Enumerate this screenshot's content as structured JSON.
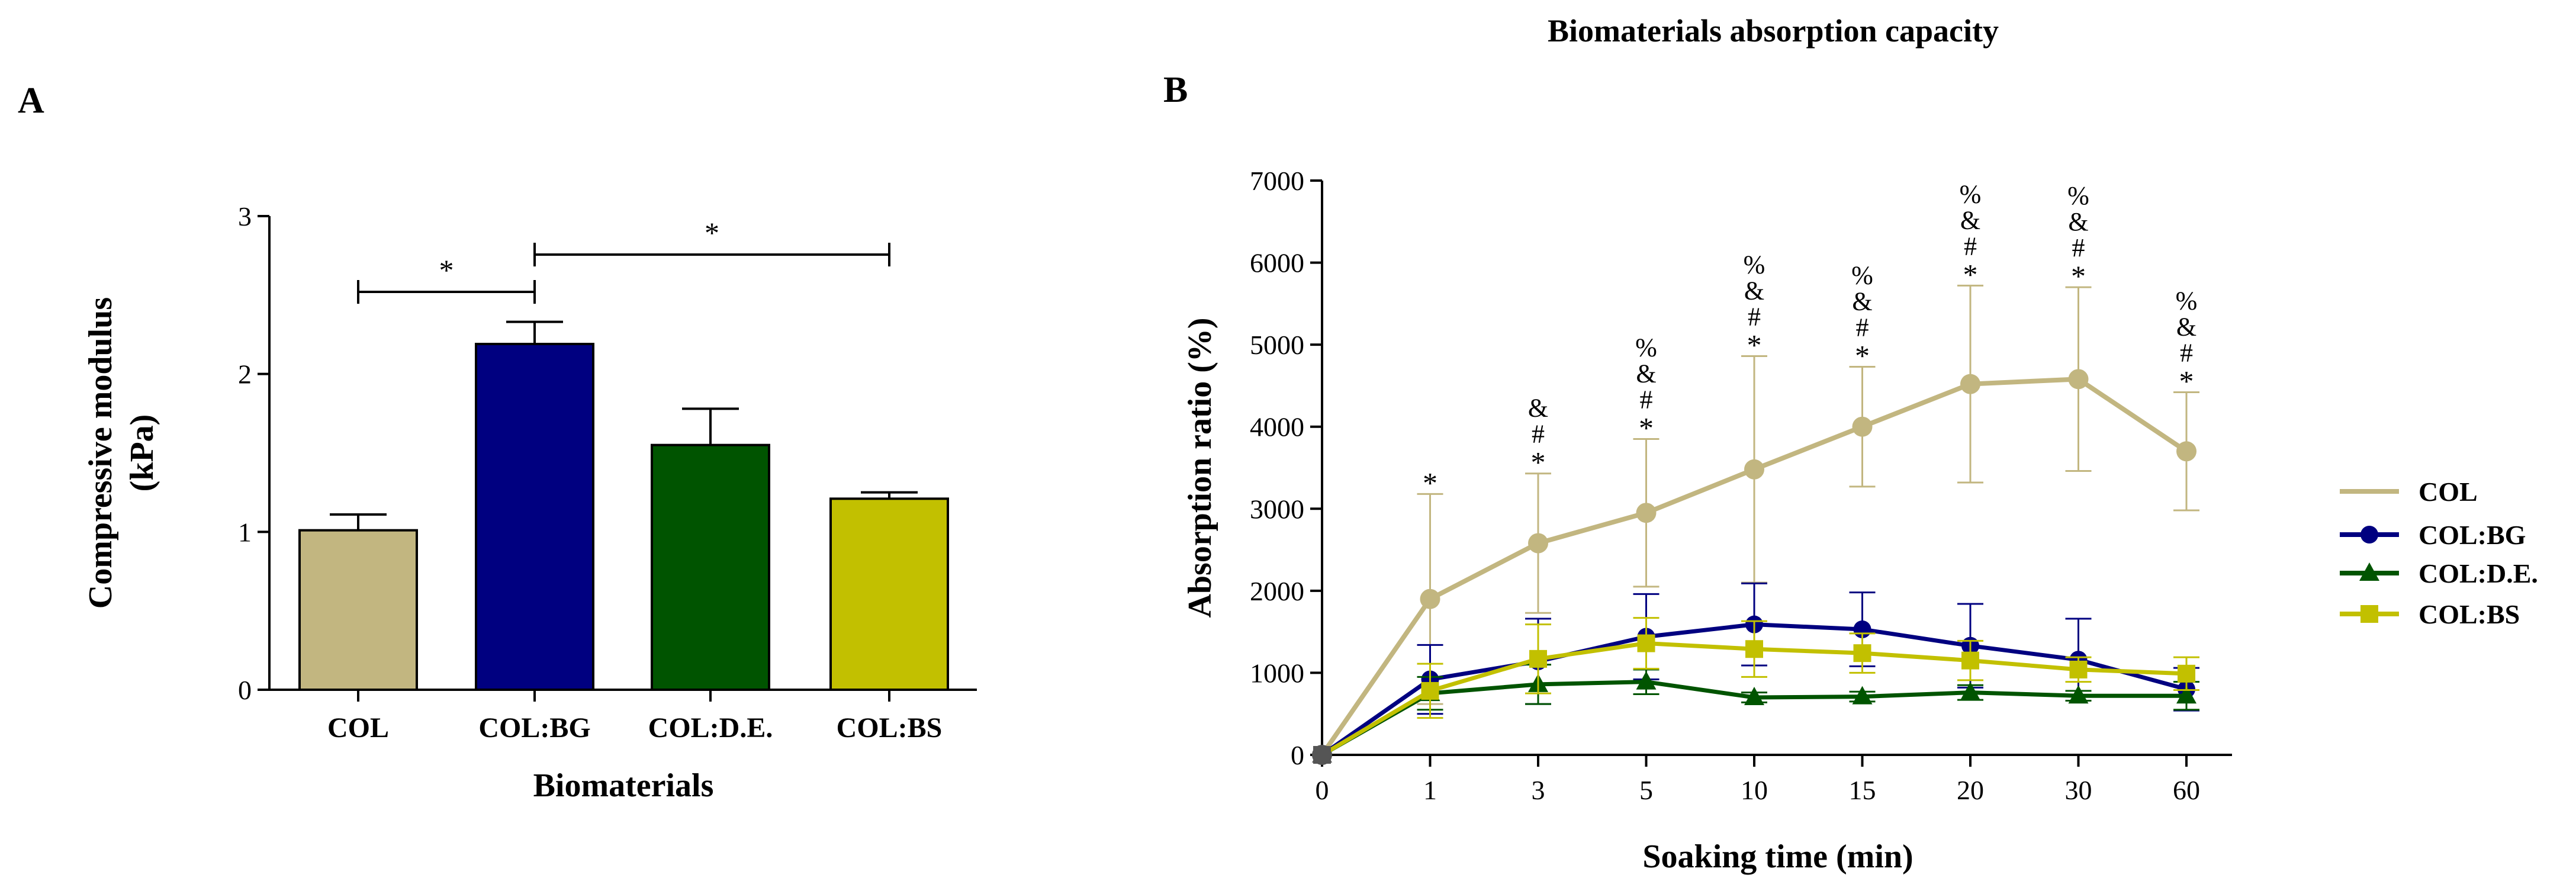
{
  "chart_data": [
    {
      "panel": "A",
      "type": "bar",
      "title": "",
      "xlabel": "Biomaterials",
      "ylabel": "Compressive modulus",
      "ylabel_unit": "(kPa)",
      "ylim": [
        0,
        3
      ],
      "yticks": [
        0,
        1,
        2,
        3
      ],
      "categories": [
        "COL",
        "COL:BG",
        "COL:D.E.",
        "COL:BS"
      ],
      "values": [
        1.01,
        2.19,
        1.55,
        1.21
      ],
      "errors": [
        0.1,
        0.14,
        0.23,
        0.04
      ],
      "colors": [
        "#c2b680",
        "#000080",
        "#005400",
        "#c2c000"
      ],
      "significance": [
        {
          "from": 0,
          "to": 1,
          "label": "*"
        },
        {
          "from": 1,
          "to": 3,
          "label": "*"
        }
      ]
    },
    {
      "panel": "B",
      "type": "line",
      "title": "Biomaterials absorption capacity",
      "xlabel": "Soaking time (min)",
      "ylabel": "Absorption ratio (%)",
      "ylim": [
        0,
        7000
      ],
      "yticks": [
        0,
        1000,
        2000,
        3000,
        4000,
        5000,
        6000,
        7000
      ],
      "x": [
        "0",
        "1",
        "3",
        "5",
        "10",
        "15",
        "20",
        "30",
        "60"
      ],
      "legend_position": "right",
      "series": [
        {
          "name": "COL",
          "color": "#c2b680",
          "marker": "circle",
          "values": [
            0,
            1900,
            2580,
            2950,
            3480,
            4000,
            4520,
            4580,
            3700
          ],
          "errors": [
            0,
            1280,
            850,
            900,
            1380,
            730,
            1200,
            1120,
            720
          ]
        },
        {
          "name": "COL:BG",
          "color": "#000080",
          "marker": "circle",
          "values": [
            0,
            920,
            1140,
            1440,
            1590,
            1530,
            1330,
            1160,
            800
          ],
          "errors": [
            0,
            420,
            520,
            520,
            500,
            450,
            510,
            500,
            260
          ]
        },
        {
          "name": "COL:D.E.",
          "color": "#005400",
          "marker": "triangle",
          "values": [
            0,
            750,
            860,
            890,
            700,
            710,
            760,
            720,
            720
          ],
          "errors": [
            0,
            200,
            240,
            150,
            60,
            60,
            90,
            60,
            170
          ]
        },
        {
          "name": "COL:BS",
          "color": "#c2c000",
          "marker": "square",
          "values": [
            0,
            780,
            1170,
            1360,
            1290,
            1240,
            1150,
            1040,
            990
          ],
          "errors": [
            0,
            330,
            420,
            310,
            340,
            240,
            240,
            150,
            200
          ]
        }
      ],
      "annotations": [
        {
          "x_index": 1,
          "labels": [
            "*"
          ]
        },
        {
          "x_index": 2,
          "labels": [
            "&",
            "#",
            "*"
          ]
        },
        {
          "x_index": 3,
          "labels": [
            "%",
            "&",
            "#",
            "*"
          ]
        },
        {
          "x_index": 4,
          "labels": [
            "%",
            "&",
            "#",
            "*"
          ]
        },
        {
          "x_index": 5,
          "labels": [
            "%",
            "&",
            "#",
            "*"
          ]
        },
        {
          "x_index": 6,
          "labels": [
            "%",
            "&",
            "#",
            "*"
          ]
        },
        {
          "x_index": 7,
          "labels": [
            "%",
            "&",
            "#",
            "*"
          ]
        },
        {
          "x_index": 8,
          "labels": [
            "%",
            "&",
            "#",
            "*"
          ]
        }
      ]
    }
  ]
}
